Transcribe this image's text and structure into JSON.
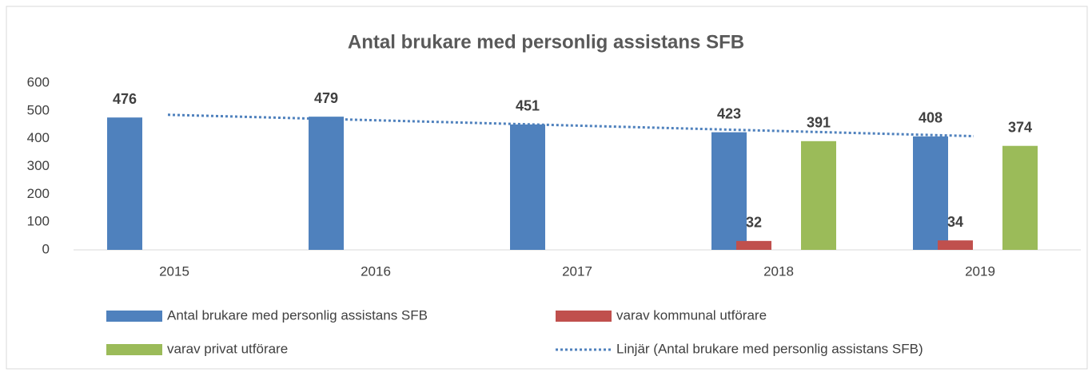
{
  "chart_data": {
    "type": "bar",
    "title": "Antal brukare med personlig assistans SFB",
    "categories": [
      "2015",
      "2016",
      "2017",
      "2018",
      "2019"
    ],
    "series": [
      {
        "name": "Antal brukare med personlig assistans SFB",
        "color": "#4f81bd",
        "values": [
          476,
          479,
          451,
          423,
          408
        ]
      },
      {
        "name": "varav kommunal utförare",
        "color": "#c0504d",
        "values": [
          null,
          null,
          null,
          32,
          34
        ]
      },
      {
        "name": "varav privat utförare",
        "color": "#9bbb59",
        "values": [
          null,
          null,
          null,
          391,
          374
        ]
      }
    ],
    "trendline": {
      "name": "Linjär (Antal brukare med personlig assistans SFB)",
      "color": "#4f81bd",
      "line_style": "dotted",
      "values": [
        485.8,
        466.6,
        447.4,
        428.2,
        409
      ]
    },
    "ylim": [
      0,
      600
    ],
    "yticks": [
      0,
      100,
      200,
      300,
      400,
      500,
      600
    ],
    "grid": false,
    "legend": "bottom"
  }
}
